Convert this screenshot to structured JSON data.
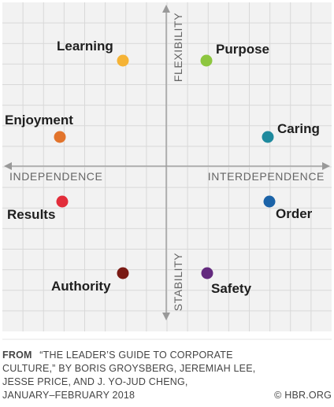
{
  "diagram": {
    "axes": {
      "top": "FLEXIBILITY",
      "bottom": "STABILITY",
      "left": "INDEPENDENCE",
      "right": "INTERDEPENDENCE"
    },
    "nodes": [
      {
        "id": "learning",
        "label": "Learning",
        "color": "#f5b335"
      },
      {
        "id": "purpose",
        "label": "Purpose",
        "color": "#8dc63f"
      },
      {
        "id": "enjoyment",
        "label": "Enjoyment",
        "color": "#e2742c"
      },
      {
        "id": "caring",
        "label": "Caring",
        "color": "#1f8a9e"
      },
      {
        "id": "results",
        "label": "Results",
        "color": "#e22d3a"
      },
      {
        "id": "order",
        "label": "Order",
        "color": "#1b63a8"
      },
      {
        "id": "authority",
        "label": "Authority",
        "color": "#7a1a14"
      },
      {
        "id": "safety",
        "label": "Safety",
        "color": "#632a7e"
      }
    ],
    "colors": {
      "background": "#f2f2f2",
      "grid": "#d8d8d8",
      "axis": "#999999"
    }
  },
  "footer": {
    "from": "FROM",
    "line1": "“THE LEADER’S GUIDE TO CORPORATE",
    "line2": "CULTURE,” BY BORIS GROYSBERG, JEREMIAH LEE,",
    "line3": "JESSE PRICE, AND J. YO-JUD CHENG,",
    "line4": "JANUARY–FEBRUARY 2018",
    "copyright": "© HBR.ORG"
  }
}
